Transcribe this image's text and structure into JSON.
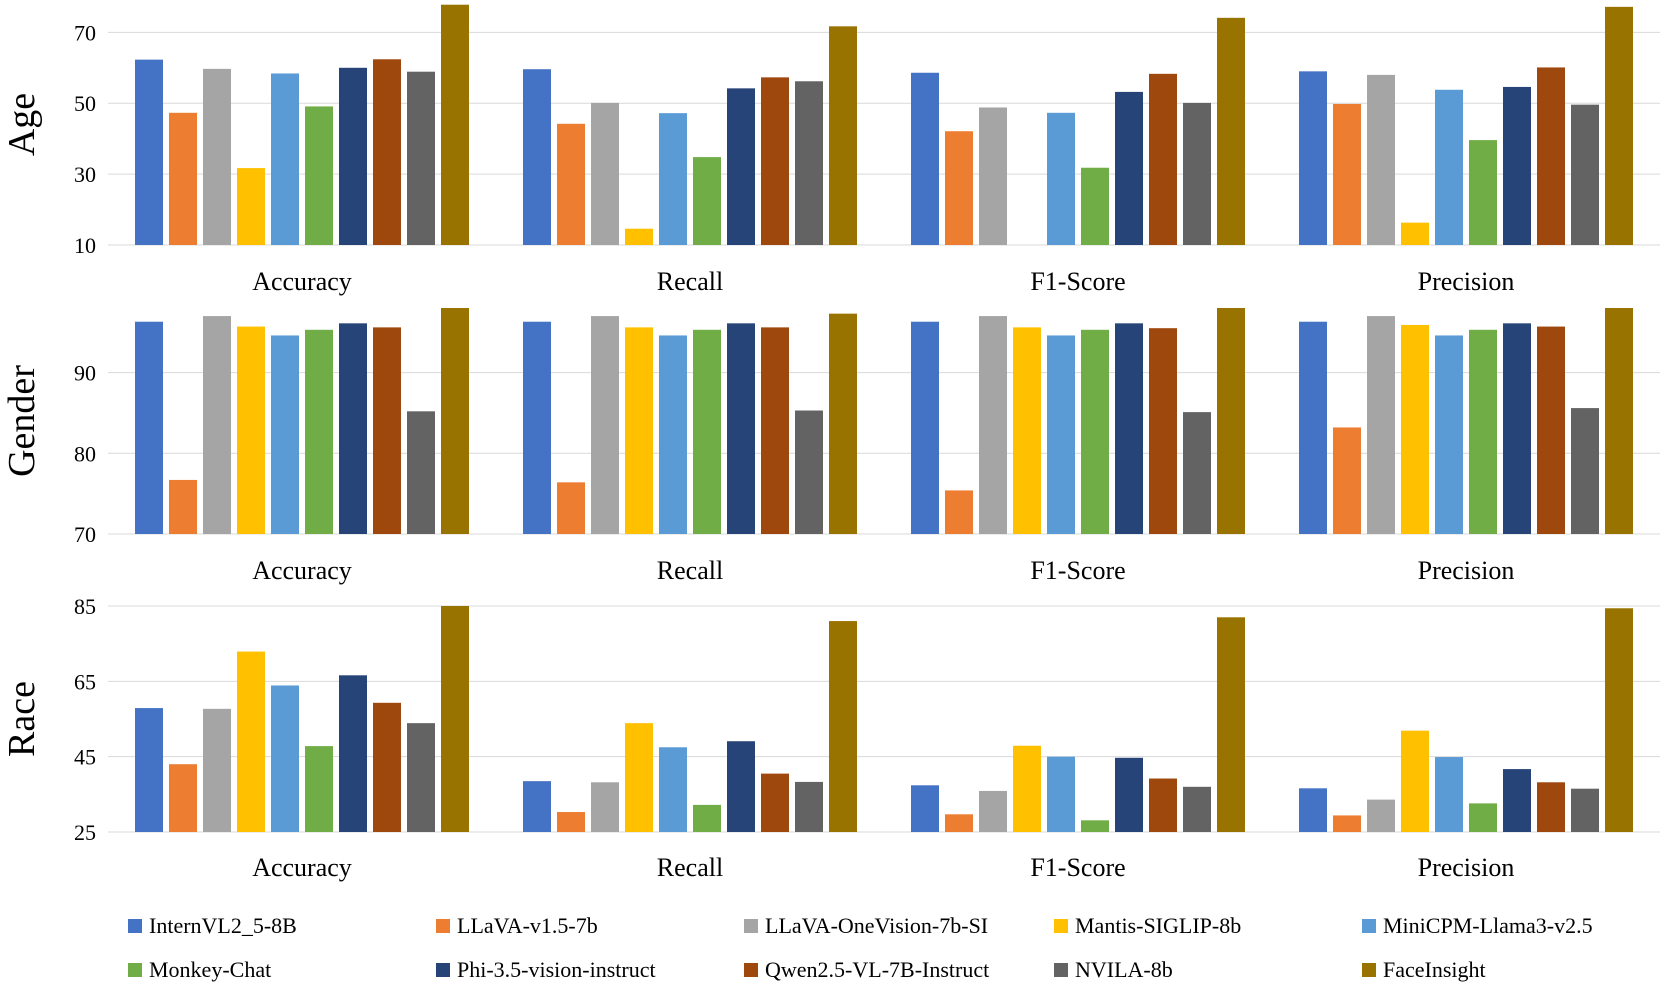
{
  "series": [
    {
      "name": "InternVL2_5-8B",
      "color": "#4472C4"
    },
    {
      "name": "LLaVA-v1.5-7b",
      "color": "#ED7D31"
    },
    {
      "name": "LLaVA-OneVision-7b-SI",
      "color": "#A5A5A5"
    },
    {
      "name": "Mantis-SIGLIP-8b",
      "color": "#FFC000"
    },
    {
      "name": "MiniCPM-Llama3-v2.5",
      "color": "#5B9BD5"
    },
    {
      "name": "Monkey-Chat",
      "color": "#70AD47"
    },
    {
      "name": "Phi-3.5-vision-instruct",
      "color": "#264478"
    },
    {
      "name": "Qwen2.5-VL-7B-Instruct",
      "color": "#9E480E"
    },
    {
      "name": "NVILA-8b",
      "color": "#636363"
    },
    {
      "name": "FaceInsight",
      "color": "#997300"
    }
  ],
  "chart_data": [
    {
      "type": "bar",
      "ylabel": "Age",
      "categories": [
        "Accuracy",
        "Recall",
        "F1-Score",
        "Precision"
      ],
      "ylim": [
        10,
        78
      ],
      "yticks": [
        10,
        30,
        50,
        70
      ],
      "grid": true,
      "values": [
        [
          62.3,
          47.3,
          59.7,
          31.7,
          58.4,
          49.1,
          60.0,
          62.4,
          58.9,
          77.8
        ],
        [
          59.6,
          44.2,
          50.1,
          14.6,
          47.2,
          34.8,
          54.2,
          57.3,
          56.2,
          71.7
        ],
        [
          58.6,
          42.1,
          48.8,
          10.0,
          47.3,
          31.8,
          53.2,
          58.3,
          50.1,
          74.1
        ],
        [
          59.0,
          49.8,
          58.0,
          16.3,
          53.8,
          39.6,
          54.6,
          60.1,
          49.6,
          77.2
        ]
      ]
    },
    {
      "type": "bar",
      "ylabel": "Gender",
      "categories": [
        "Accuracy",
        "Recall",
        "F1-Score",
        "Precision"
      ],
      "ylim": [
        70,
        98
      ],
      "yticks": [
        70,
        80,
        90
      ],
      "grid": true,
      "values": [
        [
          96.3,
          76.7,
          97.0,
          95.7,
          94.6,
          95.3,
          96.1,
          95.6,
          85.2,
          98.0
        ],
        [
          96.3,
          76.4,
          97.0,
          95.6,
          94.6,
          95.3,
          96.1,
          95.6,
          85.3,
          97.3
        ],
        [
          96.3,
          75.4,
          97.0,
          95.6,
          94.6,
          95.3,
          96.1,
          95.5,
          85.1,
          98.0
        ],
        [
          96.3,
          83.2,
          97.0,
          95.9,
          94.6,
          95.3,
          96.1,
          95.7,
          85.6,
          98.0
        ]
      ]
    },
    {
      "type": "bar",
      "ylabel": "Race",
      "categories": [
        "Accuracy",
        "Recall",
        "F1-Score",
        "Precision"
      ],
      "ylim": [
        25,
        85
      ],
      "yticks": [
        25,
        45,
        65,
        85
      ],
      "grid": true,
      "values": [
        [
          57.9,
          43.0,
          57.7,
          72.9,
          63.9,
          47.8,
          66.6,
          59.3,
          53.9,
          85.0
        ],
        [
          38.5,
          30.3,
          38.2,
          53.9,
          47.5,
          32.2,
          49.1,
          40.5,
          38.3,
          81.0
        ],
        [
          37.4,
          29.7,
          35.9,
          47.9,
          45.0,
          28.1,
          44.7,
          39.2,
          37.0,
          82.0
        ],
        [
          36.6,
          29.4,
          33.6,
          51.9,
          44.9,
          32.6,
          41.7,
          38.2,
          36.5,
          84.4
        ]
      ]
    }
  ]
}
